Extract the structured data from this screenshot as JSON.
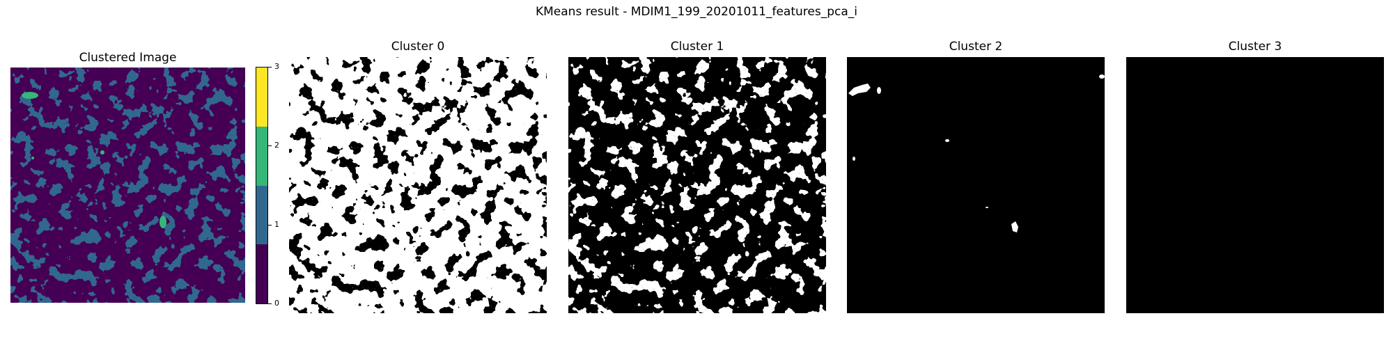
{
  "figure": {
    "title": "KMeans result - MDIM1_199_20201011_features_pca_i"
  },
  "clustered_image": {
    "title": "Clustered Image",
    "colormap": [
      "#440154",
      "#31688e",
      "#35b779",
      "#fde725"
    ]
  },
  "colorbar": {
    "ticks": [
      "0",
      "1",
      "2",
      "3"
    ],
    "colors": [
      "#440154",
      "#31688e",
      "#35b779",
      "#fde725"
    ]
  },
  "clusters": [
    {
      "title": "Cluster 0"
    },
    {
      "title": "Cluster 1"
    },
    {
      "title": "Cluster 2"
    },
    {
      "title": "Cluster 3"
    }
  ]
}
